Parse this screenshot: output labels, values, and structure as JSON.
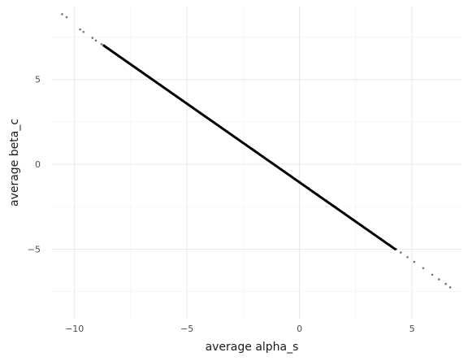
{
  "chart_data": {
    "type": "scatter",
    "title": "",
    "xlabel": "average alpha_s",
    "ylabel": "average beta_c",
    "xlim": [
      -11.0,
      7.2
    ],
    "ylim": [
      -9.1,
      9.3
    ],
    "x_ticks": [
      -10,
      -5,
      0,
      5
    ],
    "x_tick_labels": [
      "−10",
      "−5",
      "0",
      "5"
    ],
    "y_ticks": [
      -5,
      0,
      5
    ],
    "y_tick_labels": [
      "−5",
      "0",
      "5"
    ],
    "grid": true,
    "legend": "none",
    "point_color": "#000000",
    "points": [
      {
        "x": -10.55,
        "y": 8.85
      },
      {
        "x": -10.35,
        "y": 8.67
      },
      {
        "x": -9.75,
        "y": 7.95
      },
      {
        "x": -9.6,
        "y": 7.8
      },
      {
        "x": -9.2,
        "y": 7.45
      },
      {
        "x": -9.05,
        "y": 7.3
      },
      {
        "x": -8.8,
        "y": 7.08
      },
      {
        "x": -8.6,
        "y": 6.9
      },
      {
        "x": -8.3,
        "y": 6.62
      },
      {
        "x": -8.0,
        "y": 6.35
      },
      {
        "x": -7.6,
        "y": 5.98
      },
      {
        "x": -7.2,
        "y": 5.6
      },
      {
        "x": -6.8,
        "y": 5.25
      },
      {
        "x": -6.4,
        "y": 4.87
      },
      {
        "x": -6.0,
        "y": 4.5
      },
      {
        "x": -5.6,
        "y": 4.12
      },
      {
        "x": -5.2,
        "y": 3.77
      },
      {
        "x": -4.8,
        "y": 3.4
      },
      {
        "x": -4.4,
        "y": 3.03
      },
      {
        "x": -4.0,
        "y": 2.65
      },
      {
        "x": -3.6,
        "y": 2.3
      },
      {
        "x": -3.2,
        "y": 1.93
      },
      {
        "x": -2.8,
        "y": 1.56
      },
      {
        "x": -2.4,
        "y": 1.18
      },
      {
        "x": -2.0,
        "y": 0.82
      },
      {
        "x": -1.6,
        "y": 0.45
      },
      {
        "x": -1.2,
        "y": 0.08
      },
      {
        "x": -0.8,
        "y": -0.3
      },
      {
        "x": -0.4,
        "y": -0.66
      },
      {
        "x": 0.0,
        "y": -1.03
      },
      {
        "x": 0.4,
        "y": -1.4
      },
      {
        "x": 0.8,
        "y": -1.77
      },
      {
        "x": 1.2,
        "y": -2.14
      },
      {
        "x": 1.6,
        "y": -2.51
      },
      {
        "x": 2.0,
        "y": -2.88
      },
      {
        "x": 2.4,
        "y": -3.25
      },
      {
        "x": 2.8,
        "y": -3.62
      },
      {
        "x": 3.2,
        "y": -3.99
      },
      {
        "x": 3.6,
        "y": -4.36
      },
      {
        "x": 4.0,
        "y": -4.73
      },
      {
        "x": 4.3,
        "y": -5.0
      },
      {
        "x": 4.5,
        "y": -5.2
      },
      {
        "x": 4.8,
        "y": -5.47
      },
      {
        "x": 5.1,
        "y": -5.75
      },
      {
        "x": 5.5,
        "y": -6.12
      },
      {
        "x": 5.9,
        "y": -6.5
      },
      {
        "x": 6.2,
        "y": -6.78
      },
      {
        "x": 6.5,
        "y": -7.05
      },
      {
        "x": 6.7,
        "y": -7.25
      }
    ],
    "dense_segment": {
      "x_start": -8.7,
      "y_start": 7.0,
      "x_end": 4.25,
      "y_end": -5.0
    }
  }
}
